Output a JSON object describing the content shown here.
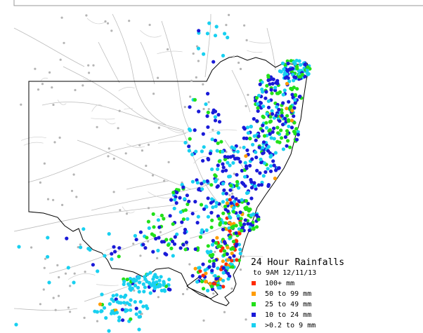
{
  "map": {
    "title": "24 Hour Rainfalls",
    "subtitle": "to 9AM 12/11/13"
  },
  "legend": {
    "items": [
      {
        "label": "100+ mm",
        "color": "#ff2a00"
      },
      {
        "label": "50  to 99 mm",
        "color": "#ff9c00"
      },
      {
        "label": "25  to 49 mm",
        "color": "#22e01a"
      },
      {
        "label": "10  to 24 mm",
        "color": "#1a1ad8"
      },
      {
        "label": ">0.2 to 9 mm",
        "color": "#18d0f0"
      }
    ]
  },
  "colors": {
    "border": "#000000",
    "river": "#bcbcbc",
    "dry_station": "#b4b4b4",
    "background": "#ffffff"
  }
}
